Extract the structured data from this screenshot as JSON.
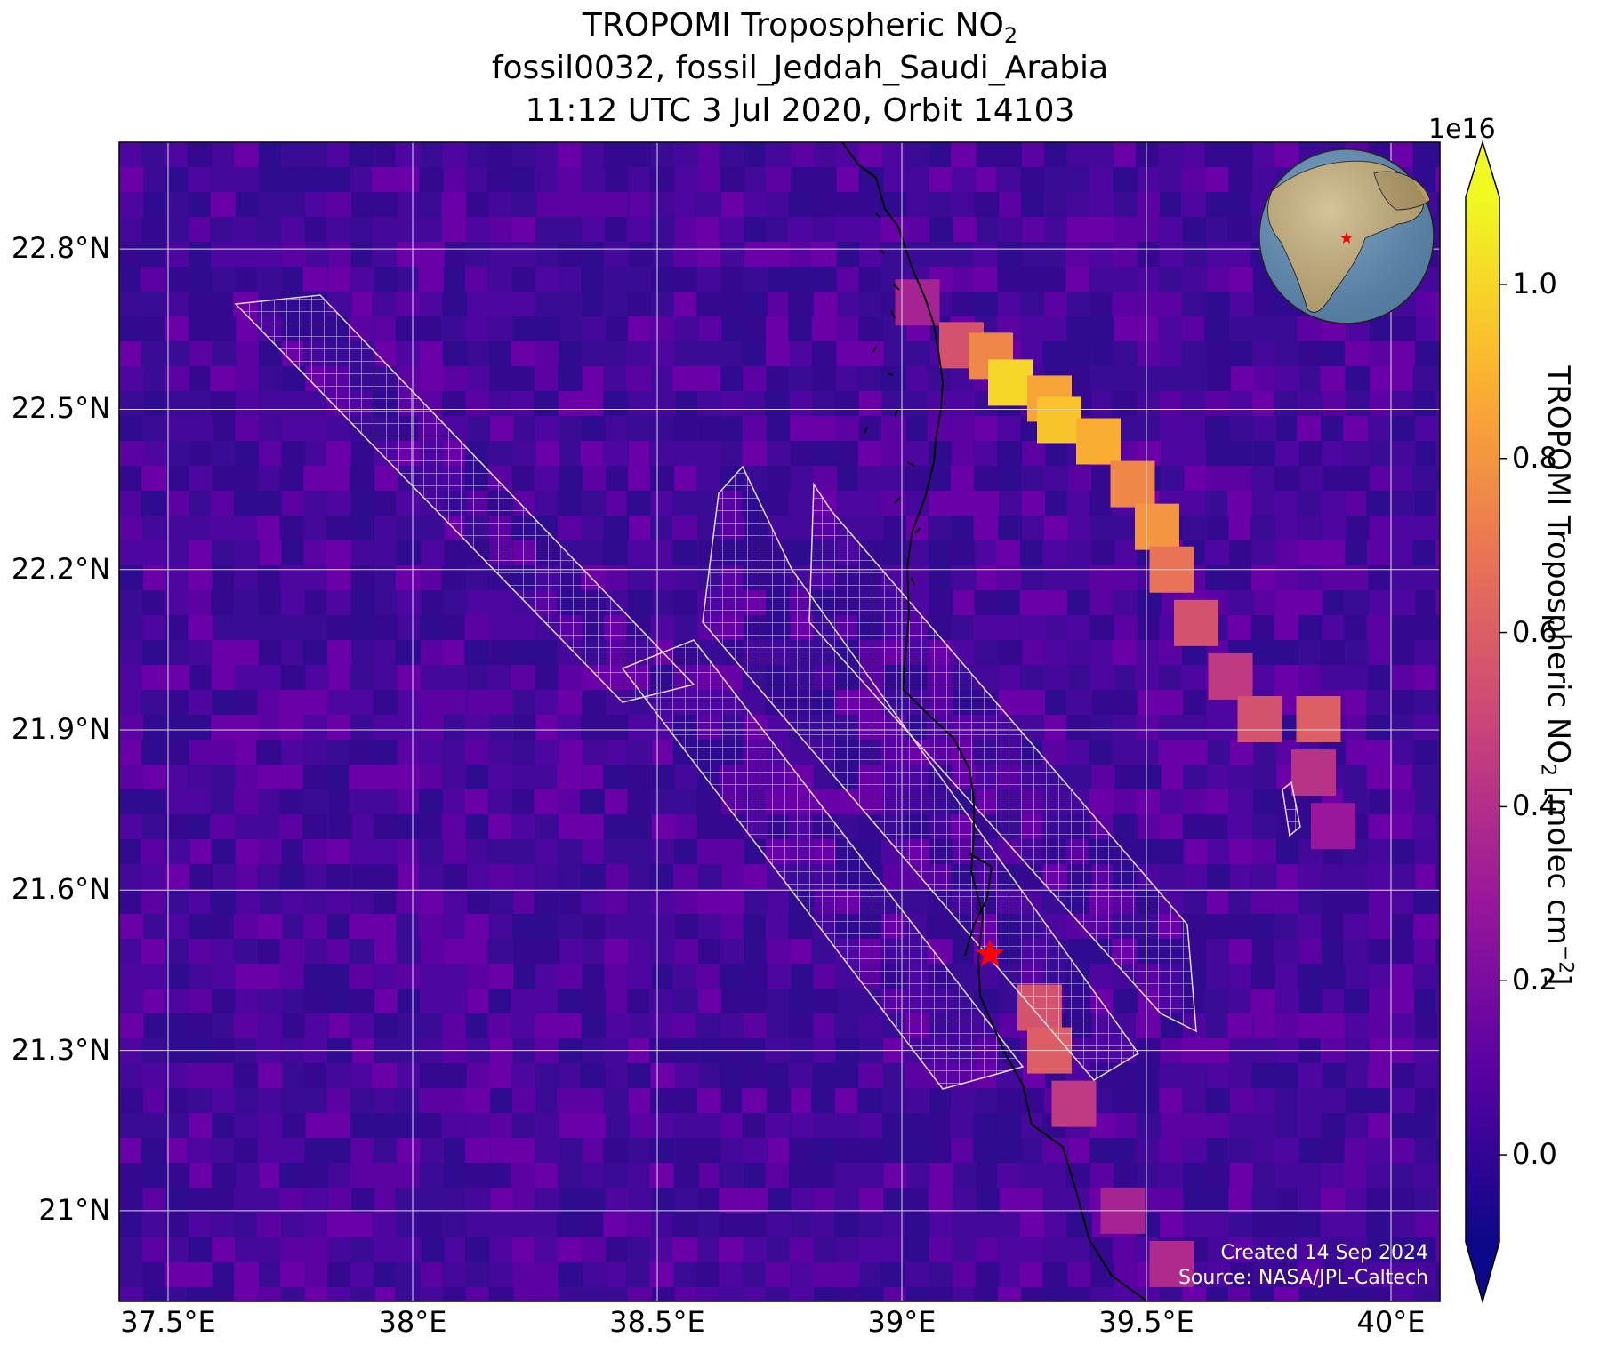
{
  "title": {
    "line1": "TROPOMI Tropospheric NO",
    "line1_sub": "2",
    "line2": "fossil0032, fossil_Jeddah_Saudi_Arabia",
    "line3": "11:12 UTC 3 Jul 2020, Orbit 14103"
  },
  "map": {
    "lon_range": [
      37.4,
      40.1
    ],
    "lat_range": [
      20.83,
      23.0
    ],
    "x_ticks": [
      {
        "value": 37.5,
        "label": "37.5°E"
      },
      {
        "value": 38.0,
        "label": "38°E"
      },
      {
        "value": 38.5,
        "label": "38.5°E"
      },
      {
        "value": 39.0,
        "label": "39°E"
      },
      {
        "value": 39.5,
        "label": "39.5°E"
      },
      {
        "value": 40.0,
        "label": "40°E"
      }
    ],
    "y_ticks": [
      {
        "value": 22.8,
        "label": "22.8°N"
      },
      {
        "value": 22.5,
        "label": "22.5°N"
      },
      {
        "value": 22.2,
        "label": "22.2°N"
      },
      {
        "value": 21.9,
        "label": "21.9°N"
      },
      {
        "value": 21.6,
        "label": "21.6°N"
      },
      {
        "value": 21.3,
        "label": "21.3°N"
      },
      {
        "value": 21.0,
        "label": "21°N"
      }
    ],
    "grid": true,
    "background_color": "#3d0c9a",
    "target": {
      "lon": 39.18,
      "lat": 21.48,
      "color": "#ff0000",
      "icon": "red-star-icon"
    },
    "plume": [
      {
        "lon": 39.03,
        "lat": 22.7,
        "v": 0.35
      },
      {
        "lon": 39.12,
        "lat": 22.62,
        "v": 0.55
      },
      {
        "lon": 39.18,
        "lat": 22.6,
        "v": 0.75
      },
      {
        "lon": 39.22,
        "lat": 22.55,
        "v": 1.0
      },
      {
        "lon": 39.3,
        "lat": 22.52,
        "v": 0.85
      },
      {
        "lon": 39.32,
        "lat": 22.48,
        "v": 0.95
      },
      {
        "lon": 39.4,
        "lat": 22.44,
        "v": 0.88
      },
      {
        "lon": 39.47,
        "lat": 22.36,
        "v": 0.75
      },
      {
        "lon": 39.52,
        "lat": 22.28,
        "v": 0.8
      },
      {
        "lon": 39.55,
        "lat": 22.2,
        "v": 0.68
      },
      {
        "lon": 39.6,
        "lat": 22.1,
        "v": 0.55
      },
      {
        "lon": 39.67,
        "lat": 22.0,
        "v": 0.45
      },
      {
        "lon": 39.73,
        "lat": 21.92,
        "v": 0.55
      },
      {
        "lon": 39.85,
        "lat": 21.92,
        "v": 0.6
      },
      {
        "lon": 39.84,
        "lat": 21.82,
        "v": 0.42
      },
      {
        "lon": 39.88,
        "lat": 21.72,
        "v": 0.3
      },
      {
        "lon": 39.28,
        "lat": 21.38,
        "v": 0.55
      },
      {
        "lon": 39.3,
        "lat": 21.3,
        "v": 0.6
      },
      {
        "lon": 39.35,
        "lat": 21.2,
        "v": 0.45
      },
      {
        "lon": 39.45,
        "lat": 21.0,
        "v": 0.35
      },
      {
        "lon": 39.55,
        "lat": 20.9,
        "v": 0.38
      }
    ],
    "globe": {
      "land_color": "#c8b07a",
      "ocean_color": "#5f8fb9",
      "marker_color": "#ff0000"
    }
  },
  "colorbar": {
    "scale_label": "1e16",
    "label_main": "TROPOMI Tropospheric NO",
    "label_sub": "2",
    "label_unit": " [molec cm",
    "label_sup": "−2",
    "label_end": "]",
    "min": -0.1,
    "max": 1.1,
    "ticks": [
      {
        "value": 0.0,
        "label": "0.0"
      },
      {
        "value": 0.2,
        "label": "0.2"
      },
      {
        "value": 0.4,
        "label": "0.4"
      },
      {
        "value": 0.6,
        "label": "0.6"
      },
      {
        "value": 0.8,
        "label": "0.8"
      },
      {
        "value": 1.0,
        "label": "1.0"
      }
    ],
    "colors": [
      "#0d0887",
      "#5b02a3",
      "#9a179b",
      "#cb4678",
      "#eb7852",
      "#fbb32f",
      "#f0f921"
    ]
  },
  "credits": {
    "line1": "Created 14 Sep 2024",
    "line2": "Source: NASA/JPL-Caltech"
  }
}
